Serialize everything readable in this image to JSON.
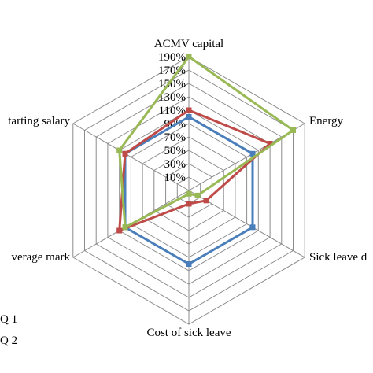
{
  "chart_data": {
    "type": "radar",
    "axes": [
      "ACMV capital",
      "Energy",
      "Sick leave d",
      "Cost of sick leave",
      "verage mark",
      "tarting salary"
    ],
    "tick_labels": [
      "10%",
      "30%",
      "50%",
      "70%",
      "90%",
      "110%",
      "130%",
      "150%",
      "170%",
      "190%"
    ],
    "rlim": [
      -10,
      190
    ],
    "grid": true,
    "legend_placement": "bottom-left",
    "series": [
      {
        "name": "Q 1",
        "color": "#4a7ebb",
        "values": [
          100,
          100,
          100,
          100,
          100,
          100
        ]
      },
      {
        "name": "Q 2",
        "color": "#be4b48",
        "values": [
          110,
          130,
          20,
          10,
          110,
          100
        ]
      },
      {
        "name": "",
        "color": "#98b954",
        "values": [
          190,
          170,
          5,
          -5,
          100,
          110
        ]
      }
    ]
  }
}
